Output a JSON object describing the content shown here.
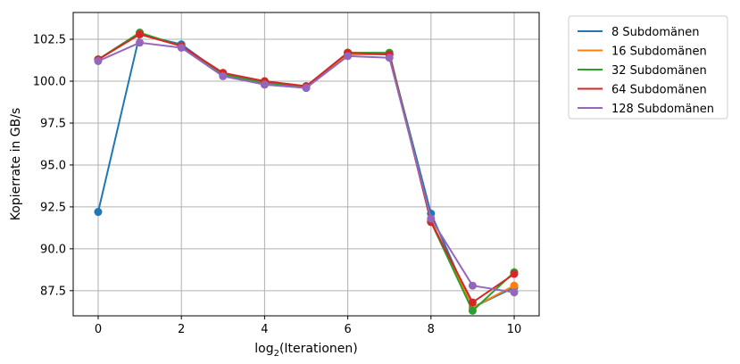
{
  "chart_data": {
    "type": "line",
    "title": "",
    "xlabel_main": "log",
    "xlabel_sub": "2",
    "xlabel_rest": "(Iterationen)",
    "ylabel": "Kopierrate in GB/s",
    "xlim": [
      -0.6,
      10.6
    ],
    "ylim": [
      86.0,
      104.1
    ],
    "xticks": [
      0,
      2,
      4,
      6,
      8,
      10
    ],
    "xtick_labels": [
      "0",
      "2",
      "4",
      "6",
      "8",
      "10"
    ],
    "yticks": [
      87.5,
      90.0,
      92.5,
      95.0,
      97.5,
      100.0,
      102.5
    ],
    "ytick_labels": [
      "87.5",
      "90.0",
      "92.5",
      "95.0",
      "97.5",
      "100.0",
      "102.5"
    ],
    "grid": true,
    "legend_position": "outside-top-right",
    "x": [
      0,
      1,
      2,
      3,
      4,
      5,
      6,
      7,
      8,
      9,
      10
    ],
    "series": [
      {
        "name": "8 Subdomänen",
        "color": "#1f77b4",
        "values": [
          92.2,
          102.8,
          102.2,
          100.4,
          99.8,
          99.6,
          101.7,
          101.6,
          92.1,
          86.5,
          87.7
        ]
      },
      {
        "name": "16 Subdomänen",
        "color": "#ff7f0e",
        "values": [
          101.3,
          102.8,
          102.1,
          100.4,
          100.0,
          99.7,
          101.6,
          101.6,
          91.7,
          86.5,
          87.8
        ]
      },
      {
        "name": "32 Subdomänen",
        "color": "#2ca02c",
        "values": [
          101.3,
          102.9,
          102.1,
          100.4,
          99.9,
          99.7,
          101.7,
          101.7,
          91.6,
          86.3,
          88.6
        ]
      },
      {
        "name": "64 Subdomänen",
        "color": "#d62728",
        "values": [
          101.3,
          102.8,
          102.1,
          100.5,
          100.0,
          99.7,
          101.7,
          101.6,
          91.6,
          86.8,
          88.5
        ]
      },
      {
        "name": "128 Subdomänen",
        "color": "#9467bd",
        "values": [
          101.2,
          102.3,
          102.0,
          100.3,
          99.8,
          99.6,
          101.5,
          101.4,
          91.8,
          87.8,
          87.4
        ]
      }
    ]
  }
}
